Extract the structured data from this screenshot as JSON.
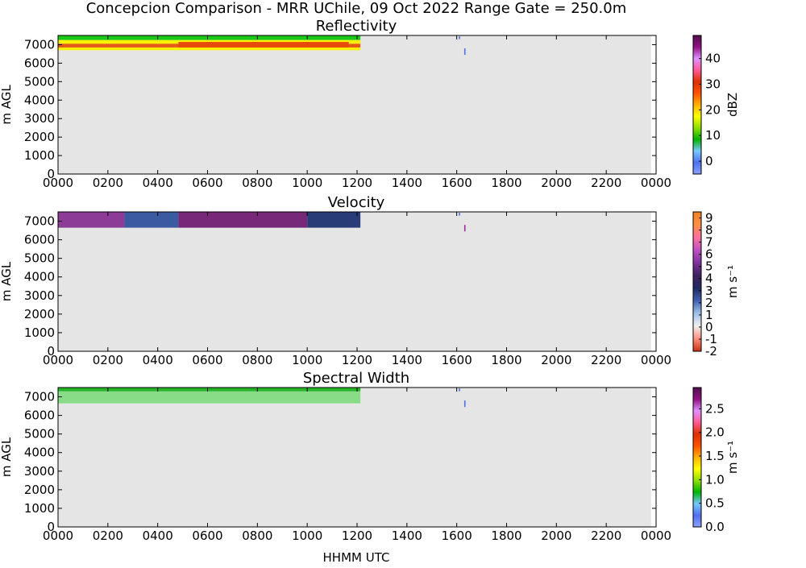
{
  "figure": {
    "title": "Concepcion Comparison - MRR UChile, 09 Oct 2022 Range Gate = 250.0m",
    "xlabel": "HHMM UTC"
  },
  "chart_data": [
    {
      "type": "heatmap",
      "title": "Reflectivity",
      "ylabel": "m AGL",
      "colorbar_label": "dBZ",
      "colorbar_ticks": [
        "0",
        "10",
        "20",
        "30",
        "40"
      ],
      "colorbar_tick_values": [
        0,
        10,
        20,
        30,
        40
      ],
      "colorbar_range": [
        -5,
        49
      ],
      "colormap": [
        "#8da0ff",
        "#5070f0",
        "#78c8ff",
        "#00b400",
        "#90e000",
        "#ffff00",
        "#ffb000",
        "#ff5000",
        "#e03000",
        "#ff5a96",
        "#e090ff",
        "#901080",
        "#501050"
      ],
      "x_ticks": [
        "0000",
        "0200",
        "0400",
        "0600",
        "0800",
        "1000",
        "1200",
        "1400",
        "1600",
        "1800",
        "2000",
        "2200",
        "0000"
      ],
      "x_tick_values": [
        0,
        120,
        240,
        360,
        480,
        600,
        720,
        840,
        960,
        1080,
        1200,
        1320,
        1440
      ],
      "xlim": [
        0,
        1440
      ],
      "y_ticks": [
        "0",
        "1000",
        "2000",
        "3000",
        "4000",
        "5000",
        "6000",
        "7000"
      ],
      "y_tick_values": [
        0,
        1000,
        2000,
        3000,
        4000,
        5000,
        6000,
        7000
      ],
      "ylim": [
        0,
        7500
      ],
      "background": "#e5e5e5",
      "echo_bands": [
        {
          "x0": 0,
          "x1": 728,
          "y0": 7250,
          "y1": 7500,
          "color": "#19c819"
        },
        {
          "x0": 0,
          "x1": 728,
          "y0": 7050,
          "y1": 7250,
          "color": "#fff100"
        },
        {
          "x0": 0,
          "x1": 728,
          "y0": 6700,
          "y1": 6850,
          "color": "#fff100"
        },
        {
          "x0": 0,
          "x1": 728,
          "y0": 6850,
          "y1": 7050,
          "color": "#e65a14"
        },
        {
          "x0": 290,
          "x1": 700,
          "y0": 6850,
          "y1": 7150,
          "color": "#e64b0a"
        }
      ],
      "echo_streaks": [
        {
          "x": 965,
          "y0": 7300,
          "y1": 7450,
          "color": "#5070f0"
        },
        {
          "x": 978,
          "y0": 6450,
          "y1": 6800,
          "color": "#5070f0"
        }
      ]
    },
    {
      "type": "heatmap",
      "title": "Velocity",
      "ylabel": "m AGL",
      "colorbar_label": "m s⁻¹",
      "colorbar_ticks": [
        "-2",
        "-1",
        "0",
        "1",
        "2",
        "3",
        "4",
        "5",
        "6",
        "7",
        "8",
        "9"
      ],
      "colorbar_tick_values": [
        -2,
        -1,
        0,
        1,
        2,
        3,
        4,
        5,
        6,
        7,
        8,
        9
      ],
      "colorbar_range": [
        -2,
        9.5
      ],
      "colormap": [
        "#c83010",
        "#ff9080",
        "#f0f0f0",
        "#a0c0e8",
        "#4060b0",
        "#202860",
        "#402060",
        "#8030a0",
        "#c050c0",
        "#ff70a0",
        "#ff9040",
        "#f08020"
      ],
      "x_ticks": [
        "0000",
        "0200",
        "0400",
        "0600",
        "0800",
        "1000",
        "1200",
        "1400",
        "1600",
        "1800",
        "2000",
        "2200",
        "0000"
      ],
      "x_tick_values": [
        0,
        120,
        240,
        360,
        480,
        600,
        720,
        840,
        960,
        1080,
        1200,
        1320,
        1440
      ],
      "xlim": [
        0,
        1440
      ],
      "y_ticks": [
        "0",
        "1000",
        "2000",
        "3000",
        "4000",
        "5000",
        "6000",
        "7000"
      ],
      "y_tick_values": [
        0,
        1000,
        2000,
        3000,
        4000,
        5000,
        6000,
        7000
      ],
      "ylim": [
        0,
        7500
      ],
      "background": "#e5e5e5",
      "echo_bands": [
        {
          "x0": 0,
          "x1": 160,
          "y0": 6650,
          "y1": 7500,
          "color": "#8c3c96"
        },
        {
          "x0": 160,
          "x1": 290,
          "y0": 6650,
          "y1": 7500,
          "color": "#3c5aa0"
        },
        {
          "x0": 290,
          "x1": 600,
          "y0": 6650,
          "y1": 7500,
          "color": "#782878"
        },
        {
          "x0": 600,
          "x1": 728,
          "y0": 6650,
          "y1": 7500,
          "color": "#283c78"
        }
      ],
      "echo_streaks": [
        {
          "x": 965,
          "y0": 7300,
          "y1": 7450,
          "color": "#5070f0"
        },
        {
          "x": 978,
          "y0": 6450,
          "y1": 6800,
          "color": "#9c2aa0"
        }
      ]
    },
    {
      "type": "heatmap",
      "title": "Spectral Width",
      "ylabel": "m AGL",
      "colorbar_label": "m s⁻¹",
      "colorbar_ticks": [
        "0.0",
        "0.5",
        "1.0",
        "1.5",
        "2.0",
        "2.5"
      ],
      "colorbar_tick_values": [
        0.0,
        0.5,
        1.0,
        1.5,
        2.0,
        2.5
      ],
      "colorbar_range": [
        0,
        2.95
      ],
      "colormap": [
        "#8da0ff",
        "#5070f0",
        "#78c8ff",
        "#00b400",
        "#90e000",
        "#ffff00",
        "#ffb000",
        "#ff5000",
        "#e03000",
        "#ff5a96",
        "#e090ff",
        "#901080",
        "#501050"
      ],
      "x_ticks": [
        "0000",
        "0200",
        "0400",
        "0600",
        "0800",
        "1000",
        "1200",
        "1400",
        "1600",
        "1800",
        "2000",
        "2200",
        "0000"
      ],
      "x_tick_values": [
        0,
        120,
        240,
        360,
        480,
        600,
        720,
        840,
        960,
        1080,
        1200,
        1320,
        1440
      ],
      "xlim": [
        0,
        1440
      ],
      "y_ticks": [
        "0",
        "1000",
        "2000",
        "3000",
        "4000",
        "5000",
        "6000",
        "7000"
      ],
      "y_tick_values": [
        0,
        1000,
        2000,
        3000,
        4000,
        5000,
        6000,
        7000
      ],
      "ylim": [
        0,
        7500
      ],
      "background": "#e5e5e5",
      "echo_bands": [
        {
          "x0": 0,
          "x1": 728,
          "y0": 6650,
          "y1": 7500,
          "color": "#88dc88"
        },
        {
          "x0": 0,
          "x1": 728,
          "y0": 7300,
          "y1": 7500,
          "color": "#28b428"
        }
      ],
      "echo_streaks": [
        {
          "x": 965,
          "y0": 7300,
          "y1": 7450,
          "color": "#5070f0"
        },
        {
          "x": 978,
          "y0": 6450,
          "y1": 6800,
          "color": "#5070f0"
        }
      ]
    }
  ]
}
